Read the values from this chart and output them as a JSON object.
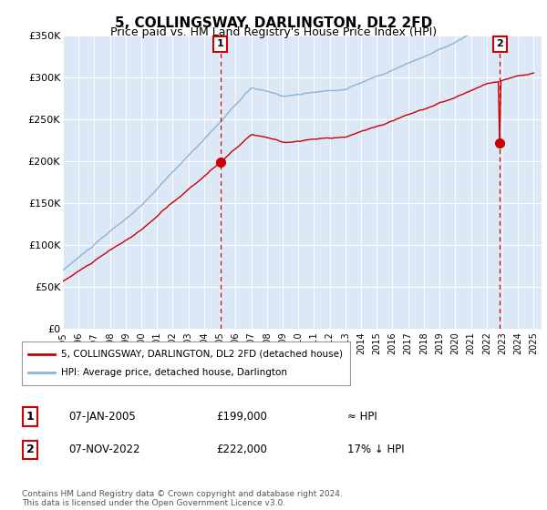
{
  "title": "5, COLLINGSWAY, DARLINGTON, DL2 2FD",
  "subtitle": "Price paid vs. HM Land Registry's House Price Index (HPI)",
  "ylim": [
    0,
    350000
  ],
  "xlim_start": 1995.0,
  "xlim_end": 2025.5,
  "sale1_date": 2005.03,
  "sale1_price": 199000,
  "sale2_date": 2022.85,
  "sale2_price": 222000,
  "sale1_label": "07-JAN-2005",
  "sale1_amount": "£199,000",
  "sale1_hpi": "≈ HPI",
  "sale2_label": "07-NOV-2022",
  "sale2_amount": "£222,000",
  "sale2_hpi": "17% ↓ HPI",
  "legend_line1": "5, COLLINGSWAY, DARLINGTON, DL2 2FD (detached house)",
  "legend_line2": "HPI: Average price, detached house, Darlington",
  "footer": "Contains HM Land Registry data © Crown copyright and database right 2024.\nThis data is licensed under the Open Government Licence v3.0.",
  "bg_color": "#dce8f5",
  "hpi_line_color": "#8ab4d8",
  "price_line_color": "#cc0000",
  "grid_color": "#ffffff",
  "dashed_line_color": "#cc0000",
  "title_fontsize": 11,
  "subtitle_fontsize": 9
}
